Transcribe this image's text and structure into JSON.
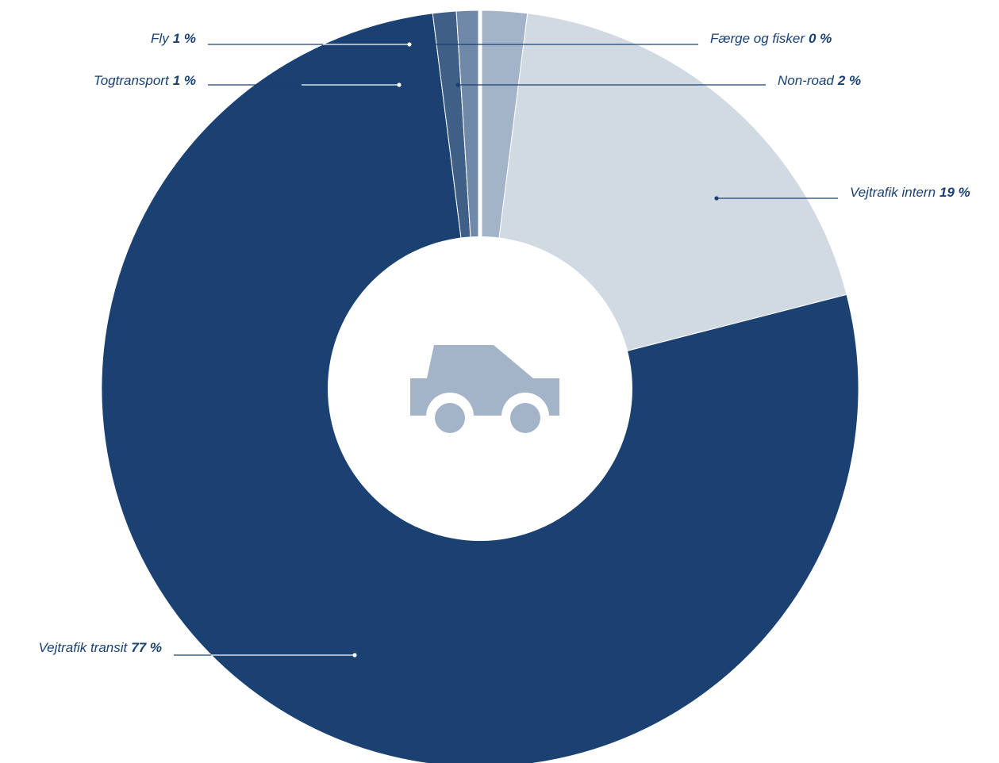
{
  "chart_data": {
    "type": "pie",
    "categories": [
      "Non-road",
      "Vejtrafik intern",
      "Vejtrafik transit",
      "Togtransport",
      "Fly",
      "Færge og fisker"
    ],
    "values": [
      2,
      19,
      77,
      1,
      1,
      0
    ],
    "value_labels": [
      "2 %",
      "19 %",
      "77 %",
      "1 %",
      "1 %",
      "0 %"
    ],
    "colors": [
      "#a3b4c9",
      "#d1d9e3",
      "#1a4172",
      "#3f5f87",
      "#7189a9",
      "#ffffff"
    ]
  }
}
